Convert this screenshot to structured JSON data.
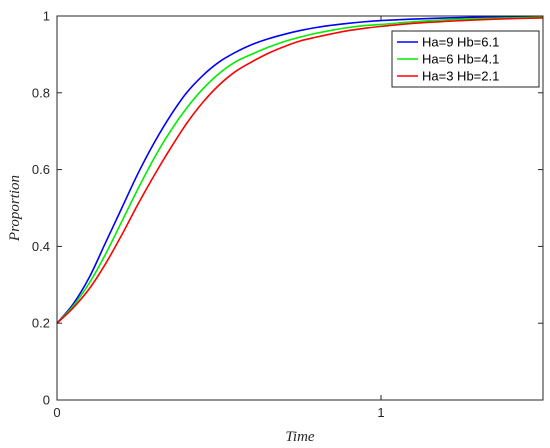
{
  "chart_data": {
    "type": "line",
    "title": "",
    "xlabel": "Time",
    "ylabel": "Proportion",
    "xlim": [
      0,
      1.5
    ],
    "ylim": [
      0,
      1
    ],
    "x_ticks": [
      0,
      1
    ],
    "x_tick_labels": [
      "0",
      "1"
    ],
    "y_ticks": [
      0,
      0.2,
      0.4,
      0.6,
      0.8,
      1
    ],
    "y_tick_labels": [
      "0",
      "0.2",
      "0.4",
      "0.6",
      "0.8",
      "1"
    ],
    "grid": false,
    "legend_position": "top-right",
    "x": [
      0,
      0.05,
      0.1,
      0.15,
      0.2,
      0.25,
      0.3,
      0.35,
      0.4,
      0.45,
      0.5,
      0.55,
      0.6,
      0.65,
      0.7,
      0.75,
      0.8,
      0.85,
      0.9,
      0.95,
      1.0,
      1.1,
      1.2,
      1.3,
      1.4,
      1.5
    ],
    "series": [
      {
        "name": "Ha=9 Hb=6.1",
        "color": "#0000ff",
        "values": [
          0.2,
          0.25,
          0.32,
          0.41,
          0.5,
          0.59,
          0.67,
          0.74,
          0.8,
          0.845,
          0.88,
          0.905,
          0.925,
          0.94,
          0.952,
          0.962,
          0.97,
          0.976,
          0.981,
          0.985,
          0.988,
          0.992,
          0.995,
          0.997,
          0.998,
          0.999
        ]
      },
      {
        "name": "Ha=6 Hb=4.1",
        "color": "#00ee00",
        "values": [
          0.2,
          0.245,
          0.305,
          0.38,
          0.465,
          0.55,
          0.63,
          0.7,
          0.76,
          0.81,
          0.85,
          0.88,
          0.9,
          0.918,
          0.933,
          0.945,
          0.955,
          0.963,
          0.97,
          0.975,
          0.978,
          0.985,
          0.99,
          0.993,
          0.995,
          0.997
        ]
      },
      {
        "name": "Ha=3 Hb=2.1",
        "color": "#ff0000",
        "values": [
          0.2,
          0.24,
          0.29,
          0.355,
          0.43,
          0.51,
          0.585,
          0.655,
          0.72,
          0.775,
          0.82,
          0.855,
          0.88,
          0.902,
          0.92,
          0.935,
          0.945,
          0.954,
          0.962,
          0.968,
          0.973,
          0.981,
          0.986,
          0.99,
          0.993,
          0.995
        ]
      }
    ]
  }
}
